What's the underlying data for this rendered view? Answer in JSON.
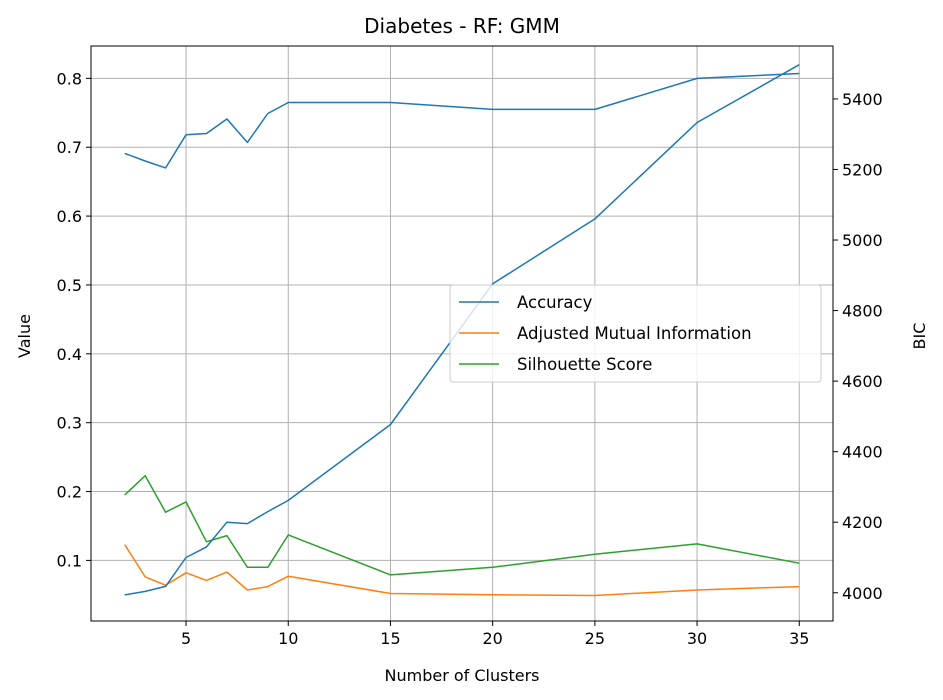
{
  "chart_data": {
    "type": "line",
    "title": "Diabetes - RF: GMM",
    "xlabel": "Number of Clusters",
    "ylabel": "Value",
    "y2label": "BIC",
    "x": [
      2,
      3,
      4,
      5,
      6,
      7,
      8,
      9,
      10,
      15,
      20,
      25,
      30,
      35
    ],
    "xlim": [
      0.35,
      36.65
    ],
    "ylim": [
      0.012,
      0.847
    ],
    "y2lim": [
      3920,
      5550
    ],
    "xticks": [
      5,
      10,
      15,
      20,
      25,
      30,
      35
    ],
    "yticks": [
      0.1,
      0.2,
      0.3,
      0.4,
      0.5,
      0.6,
      0.7,
      0.8
    ],
    "yticklabels": [
      "0.1",
      "0.2",
      "0.3",
      "0.4",
      "0.5",
      "0.6",
      "0.7",
      "0.8"
    ],
    "y2ticks": [
      4000,
      4200,
      4400,
      4600,
      4800,
      5000,
      5200,
      5400
    ],
    "grid": true,
    "legend_position": "center-right",
    "series": [
      {
        "name": "Accuracy",
        "axis": "left",
        "color": "#1f77b4",
        "values": [
          0.691,
          0.68,
          0.67,
          0.718,
          0.72,
          0.741,
          0.707,
          0.749,
          0.765,
          0.765,
          0.755,
          0.755,
          0.8,
          0.807
        ]
      },
      {
        "name": "Adjusted Mutual Information",
        "axis": "left",
        "color": "#ff7f0e",
        "values": [
          0.123,
          0.076,
          0.064,
          0.082,
          0.071,
          0.083,
          0.057,
          0.062,
          0.077,
          0.052,
          0.05,
          0.049,
          0.057,
          0.062
        ]
      },
      {
        "name": "Silhouette Score",
        "axis": "left",
        "color": "#2ca02c",
        "values": [
          0.195,
          0.223,
          0.17,
          0.185,
          0.127,
          0.136,
          0.09,
          0.09,
          0.137,
          0.079,
          0.09,
          0.109,
          0.124,
          0.096
        ]
      },
      {
        "name": "",
        "axis": "right",
        "color": "#1f77b4",
        "values": [
          3994,
          4004,
          4018,
          4100,
          4130,
          4200,
          4196,
          4230,
          4262,
          4477,
          4876,
          5060,
          5333,
          5497
        ]
      }
    ]
  }
}
